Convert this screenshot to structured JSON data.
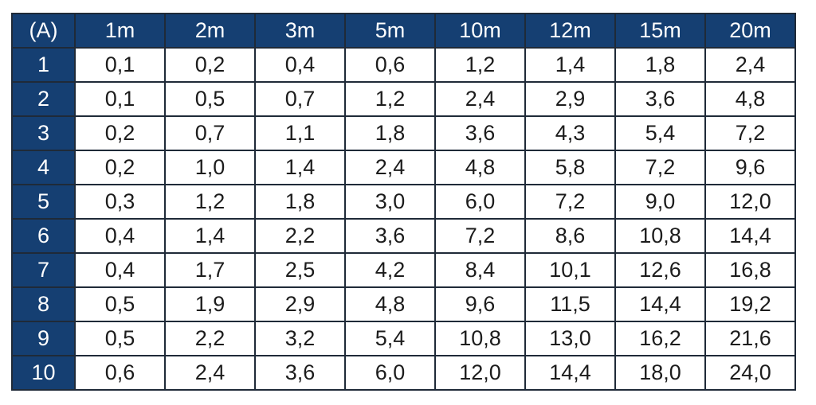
{
  "table": {
    "corner_label": "(A)",
    "columns": [
      "1m",
      "2m",
      "3m",
      "5m",
      "10m",
      "12m",
      "15m",
      "20m"
    ],
    "rows": [
      {
        "label": "1",
        "values": [
          "0,1",
          "0,2",
          "0,4",
          "0,6",
          "1,2",
          "1,4",
          "1,8",
          "2,4"
        ]
      },
      {
        "label": "2",
        "values": [
          "0,1",
          "0,5",
          "0,7",
          "1,2",
          "2,4",
          "2,9",
          "3,6",
          "4,8"
        ]
      },
      {
        "label": "3",
        "values": [
          "0,2",
          "0,7",
          "1,1",
          "1,8",
          "3,6",
          "4,3",
          "5,4",
          "7,2"
        ]
      },
      {
        "label": "4",
        "values": [
          "0,2",
          "1,0",
          "1,4",
          "2,4",
          "4,8",
          "5,8",
          "7,2",
          "9,6"
        ]
      },
      {
        "label": "5",
        "values": [
          "0,3",
          "1,2",
          "1,8",
          "3,0",
          "6,0",
          "7,2",
          "9,0",
          "12,0"
        ]
      },
      {
        "label": "6",
        "values": [
          "0,4",
          "1,4",
          "2,2",
          "3,6",
          "7,2",
          "8,6",
          "10,8",
          "14,4"
        ]
      },
      {
        "label": "7",
        "values": [
          "0,4",
          "1,7",
          "2,5",
          "4,2",
          "8,4",
          "10,1",
          "12,6",
          "16,8"
        ]
      },
      {
        "label": "8",
        "values": [
          "0,5",
          "1,9",
          "2,9",
          "4,8",
          "9,6",
          "11,5",
          "14,4",
          "19,2"
        ]
      },
      {
        "label": "9",
        "values": [
          "0,5",
          "2,2",
          "3,2",
          "5,4",
          "10,8",
          "13,0",
          "16,2",
          "21,6"
        ]
      },
      {
        "label": "10",
        "values": [
          "0,6",
          "2,4",
          "3,6",
          "6,0",
          "12,0",
          "14,4",
          "18,0",
          "24,0"
        ]
      }
    ]
  },
  "colors": {
    "header_bg": "#153f72",
    "header_text": "#ffffff",
    "border": "#1f2a38",
    "cell_bg": "#ffffff",
    "cell_text": "#1c1c1c"
  }
}
